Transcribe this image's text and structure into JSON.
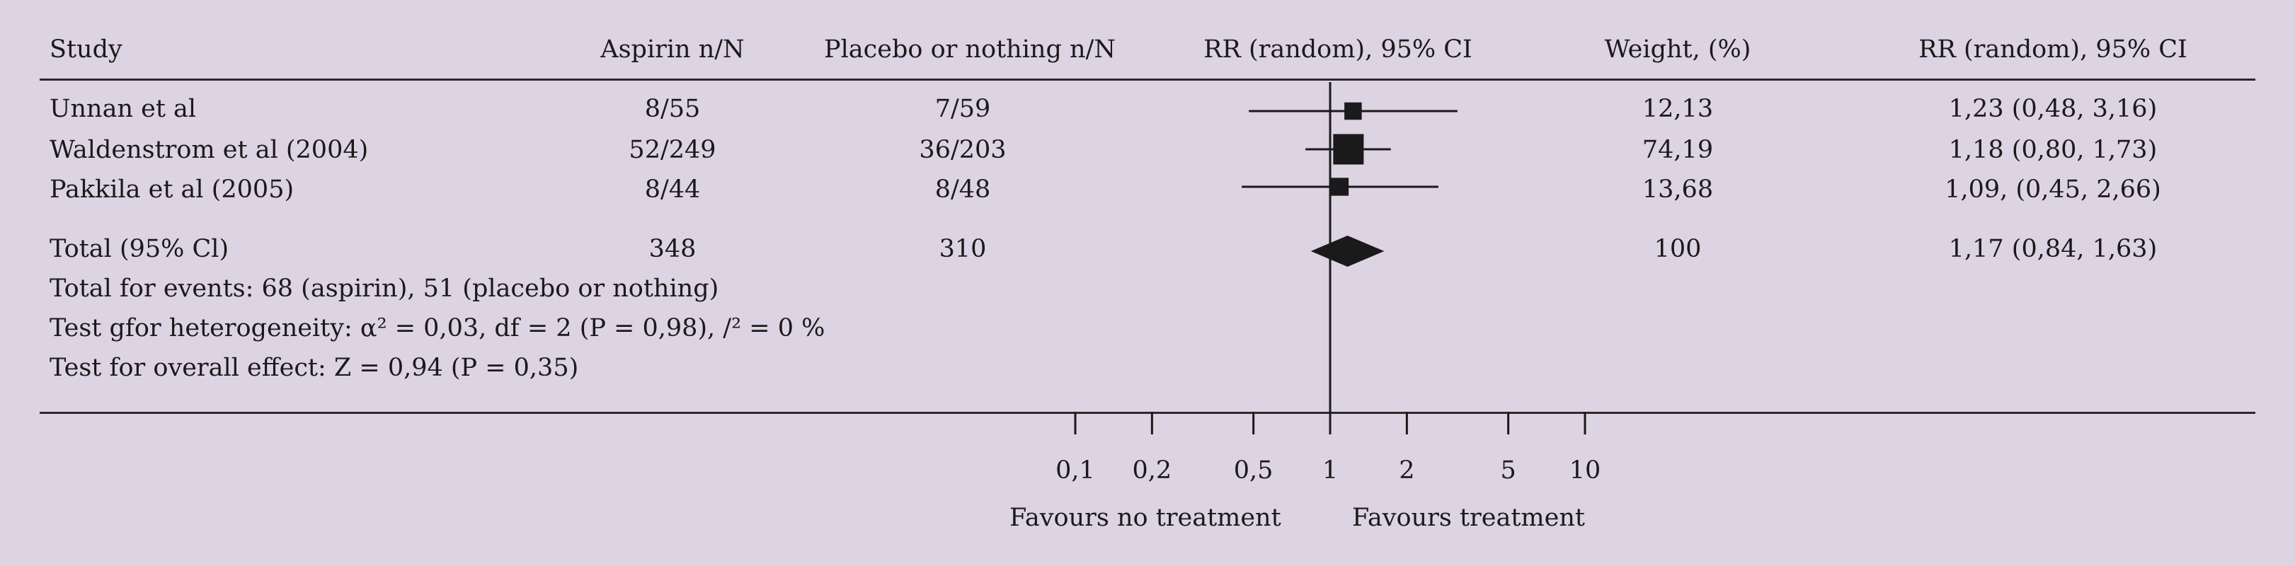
{
  "chart_data": {
    "type": "forest",
    "columns": {
      "study": "Study",
      "aspirin": "Aspirin n/N",
      "placebo": "Placebo or nothing n/N",
      "rr_plot": "RR (random), 95% CI",
      "weight": "Weight, (%)",
      "rr_text": "RR (random), 95% CI"
    },
    "studies": [
      {
        "name": "Unnan et al",
        "aspirin": "8/55",
        "placebo": "7/59",
        "rr": 1.23,
        "lo": 0.48,
        "hi": 3.16,
        "weight": 12.13,
        "weight_label": "12,13",
        "rr_label": "1,23 (0,48, 3,16)"
      },
      {
        "name": "Waldenstrom et al (2004)",
        "aspirin": "52/249",
        "placebo": "36/203",
        "rr": 1.18,
        "lo": 0.8,
        "hi": 1.73,
        "weight": 74.19,
        "weight_label": "74,19",
        "rr_label": "1,18 (0,80, 1,73)"
      },
      {
        "name": "Pakkila et al (2005)",
        "aspirin": "8/44",
        "placebo": "8/48",
        "rr": 1.09,
        "lo": 0.45,
        "hi": 2.66,
        "weight": 13.68,
        "weight_label": "13,68",
        "rr_label": "1,09, (0,45, 2,66)"
      }
    ],
    "total": {
      "name": "Total (95% Cl)",
      "aspirin": "348",
      "placebo": "310",
      "rr": 1.17,
      "lo": 0.84,
      "hi": 1.63,
      "weight_label": "100",
      "rr_label": "1,17 (0,84, 1,63)"
    },
    "notes": [
      "Total for events: 68 (aspirin), 51 (placebo or nothing)",
      "Test gfor heterogeneity: α² = 0,03, df = 2 (P = 0,98), /² = 0 %",
      "Test for overall effect: Z = 0,94 (P = 0,35)"
    ],
    "x_axis": {
      "scale": "log",
      "ticks": [
        0.1,
        0.2,
        0.5,
        1,
        2,
        5,
        10
      ],
      "tick_labels": [
        "0,1",
        "0,2",
        "0,5",
        "1",
        "2",
        "5",
        "10"
      ],
      "reference": 1
    },
    "favours_left": "Favours no treatment",
    "favours_right": "Favours treatment"
  },
  "colors": {
    "background": "#dcd3e3",
    "ink": "#1a1a1a",
    "rule": "#2a2a2a"
  }
}
